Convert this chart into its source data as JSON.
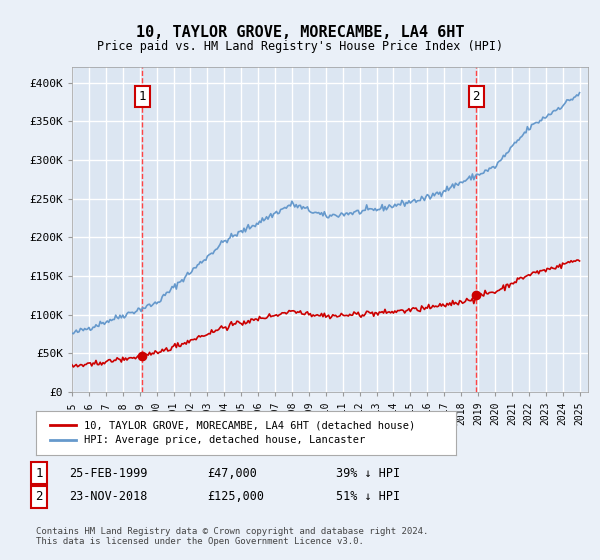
{
  "title": "10, TAYLOR GROVE, MORECAMBE, LA4 6HT",
  "subtitle": "Price paid vs. HM Land Registry's House Price Index (HPI)",
  "background_color": "#eaf0f8",
  "plot_bg_color": "#dce6f2",
  "grid_color": "#ffffff",
  "hpi_color": "#6699cc",
  "price_color": "#cc0000",
  "dashed_line_color": "#ff4444",
  "annotation_border_color": "#cc0000",
  "ylim": [
    0,
    420000
  ],
  "yticks": [
    0,
    50000,
    100000,
    150000,
    200000,
    250000,
    300000,
    350000,
    400000
  ],
  "ytick_labels": [
    "£0",
    "£50K",
    "£100K",
    "£150K",
    "£200K",
    "£250K",
    "£300K",
    "£350K",
    "£400K"
  ],
  "xtick_years": [
    1995,
    1996,
    1997,
    1998,
    1999,
    2000,
    2001,
    2002,
    2003,
    2004,
    2005,
    2006,
    2007,
    2008,
    2009,
    2010,
    2011,
    2012,
    2013,
    2014,
    2015,
    2016,
    2017,
    2018,
    2019,
    2020,
    2021,
    2022,
    2023,
    2024,
    2025
  ],
  "sale1_date": 1999.15,
  "sale1_price": 47000,
  "sale1_label": "1",
  "sale2_date": 2018.9,
  "sale2_price": 125000,
  "sale2_label": "2",
  "legend_line1": "10, TAYLOR GROVE, MORECAMBE, LA4 6HT (detached house)",
  "legend_line2": "HPI: Average price, detached house, Lancaster",
  "table_row1_num": "1",
  "table_row1_date": "25-FEB-1999",
  "table_row1_price": "£47,000",
  "table_row1_hpi": "39% ↓ HPI",
  "table_row2_num": "2",
  "table_row2_date": "23-NOV-2018",
  "table_row2_price": "£125,000",
  "table_row2_hpi": "51% ↓ HPI",
  "footer": "Contains HM Land Registry data © Crown copyright and database right 2024.\nThis data is licensed under the Open Government Licence v3.0."
}
